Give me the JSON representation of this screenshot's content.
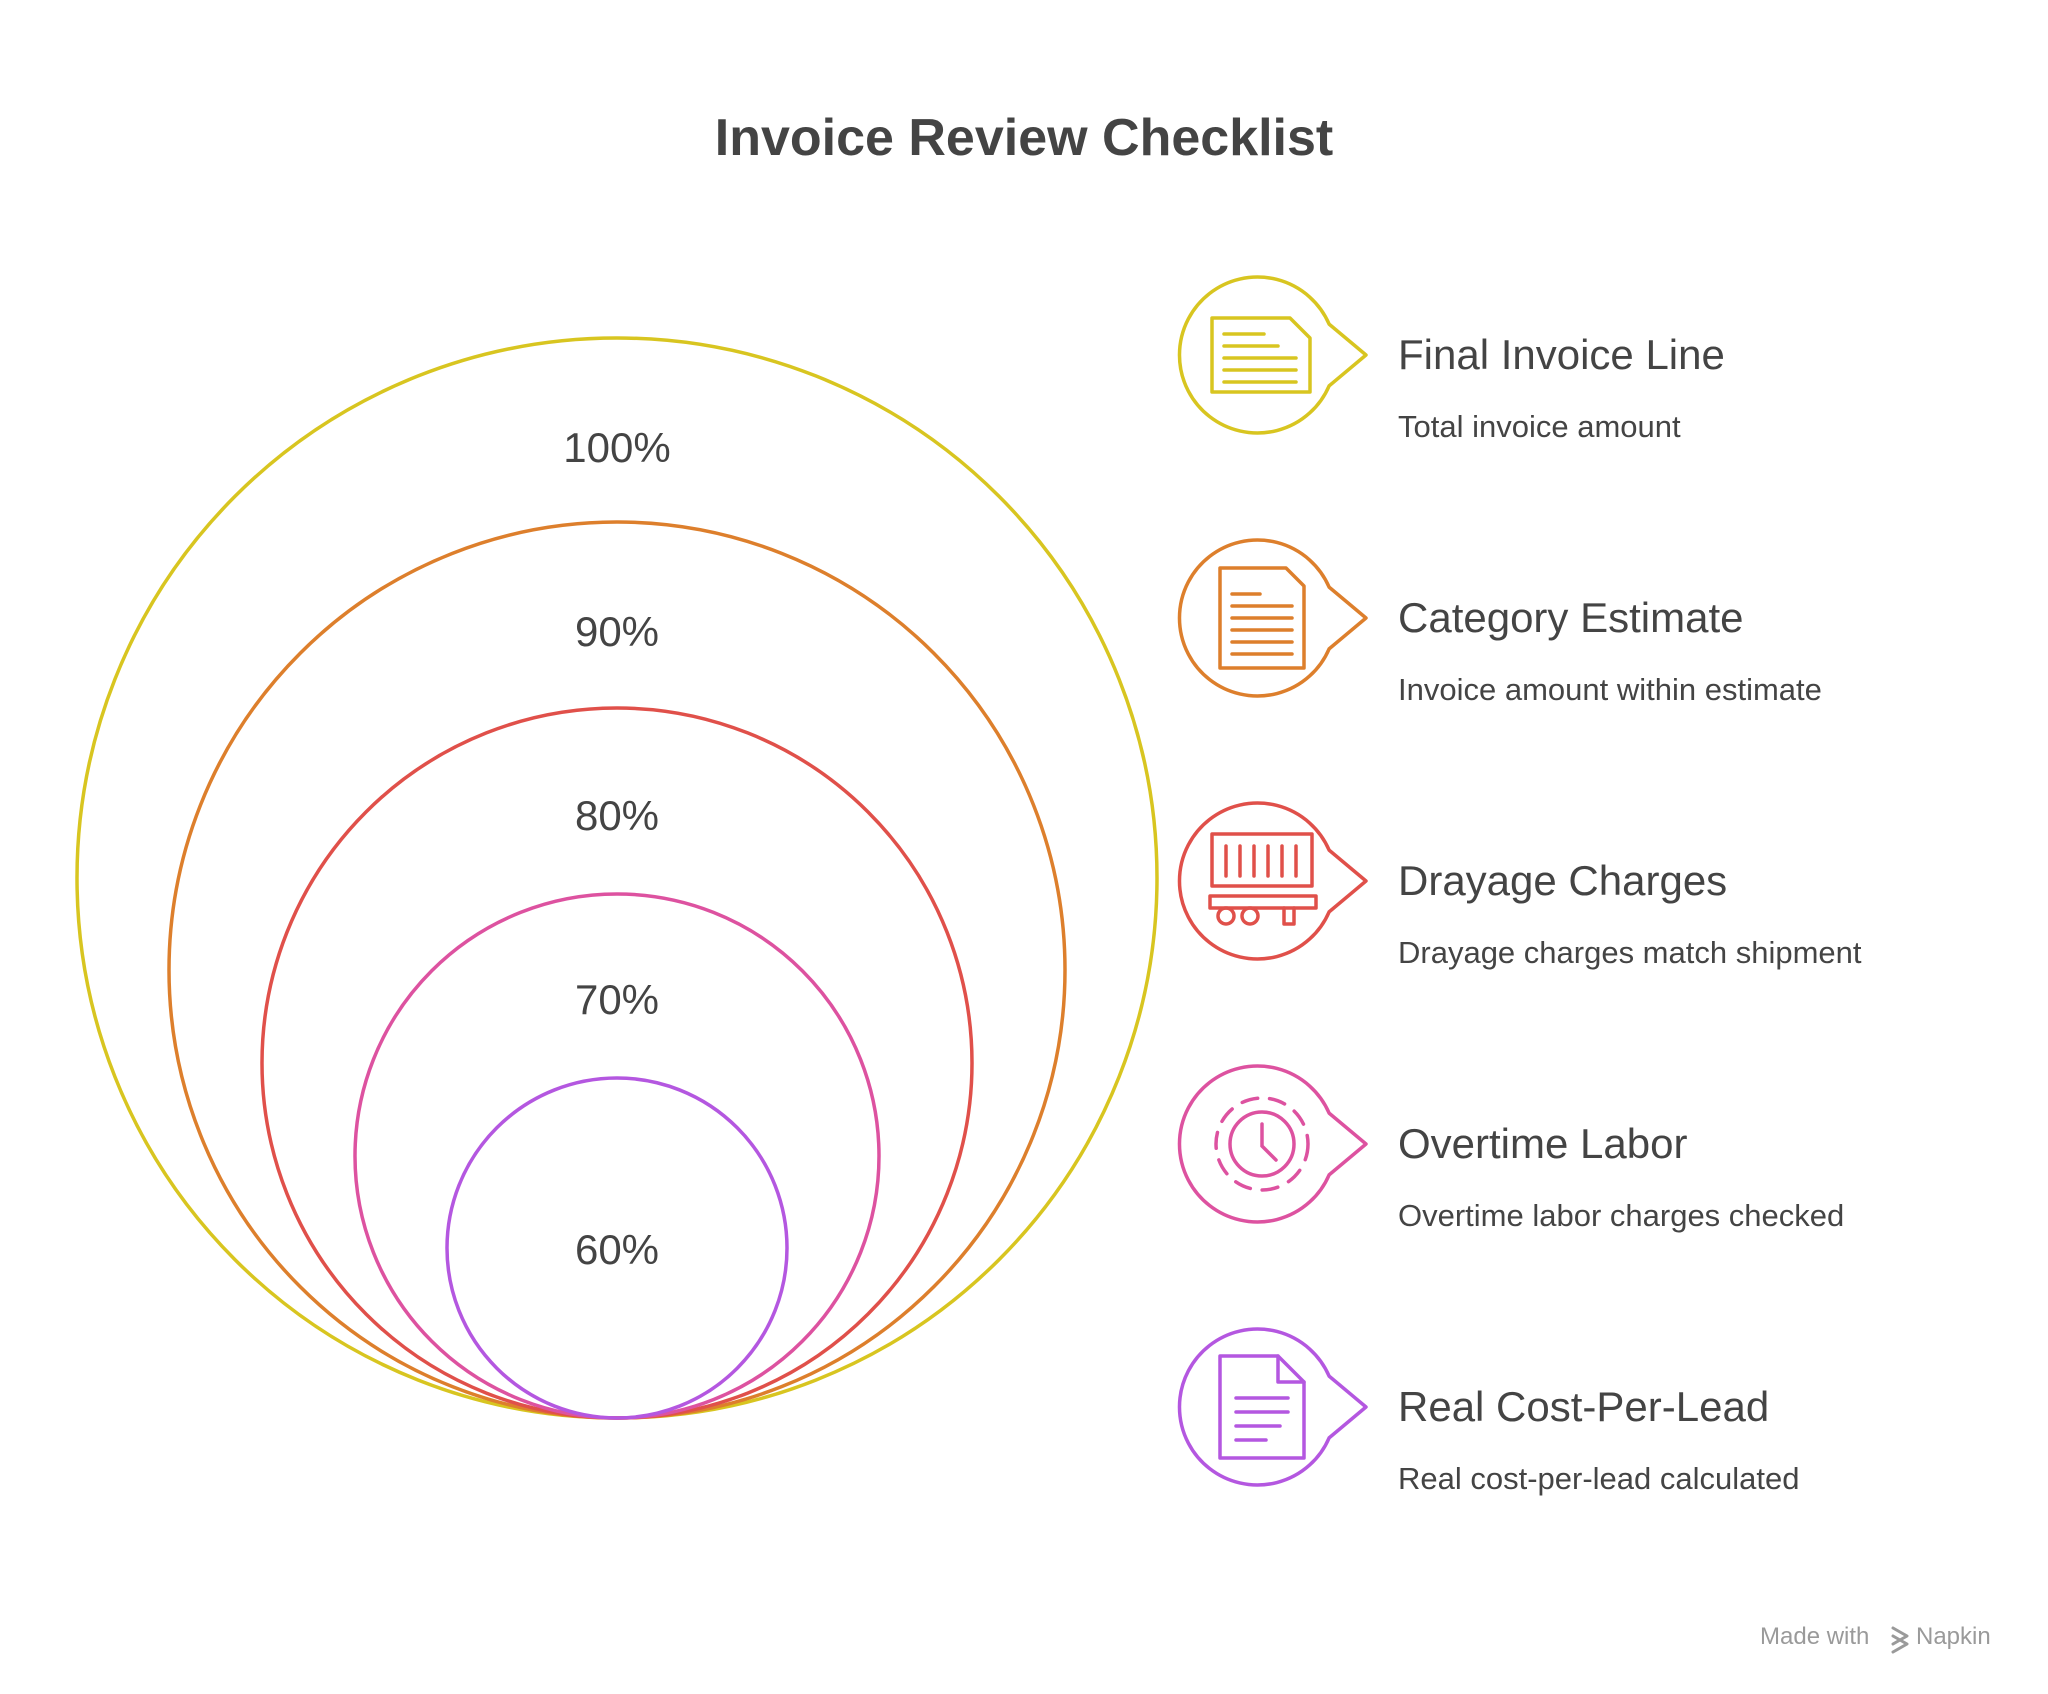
{
  "title": "Invoice Review Checklist",
  "levels": [
    {
      "percent": "100%",
      "color": "#d8c520",
      "label": "Final Invoice Line",
      "description": "Total invoice amount",
      "icon": "invoice-document-icon"
    },
    {
      "percent": "90%",
      "color": "#dd7f2c",
      "label": "Category Estimate",
      "description": "Invoice amount within estimate",
      "icon": "estimate-document-icon"
    },
    {
      "percent": "80%",
      "color": "#e0504a",
      "label": "Drayage Charges",
      "description": "Drayage charges match shipment",
      "icon": "container-truck-icon"
    },
    {
      "percent": "70%",
      "color": "#dd52a0",
      "label": "Overtime Labor",
      "description": "Overtime labor charges checked",
      "icon": "clock-icon"
    },
    {
      "percent": "60%",
      "color": "#b457e0",
      "label": "Real Cost-Per-Lead",
      "description": "Real cost-per-lead calculated",
      "icon": "report-document-icon"
    }
  ],
  "footer": {
    "made_with": "Made with",
    "brand": "Napkin",
    "icon": "napkin-logo-icon"
  }
}
